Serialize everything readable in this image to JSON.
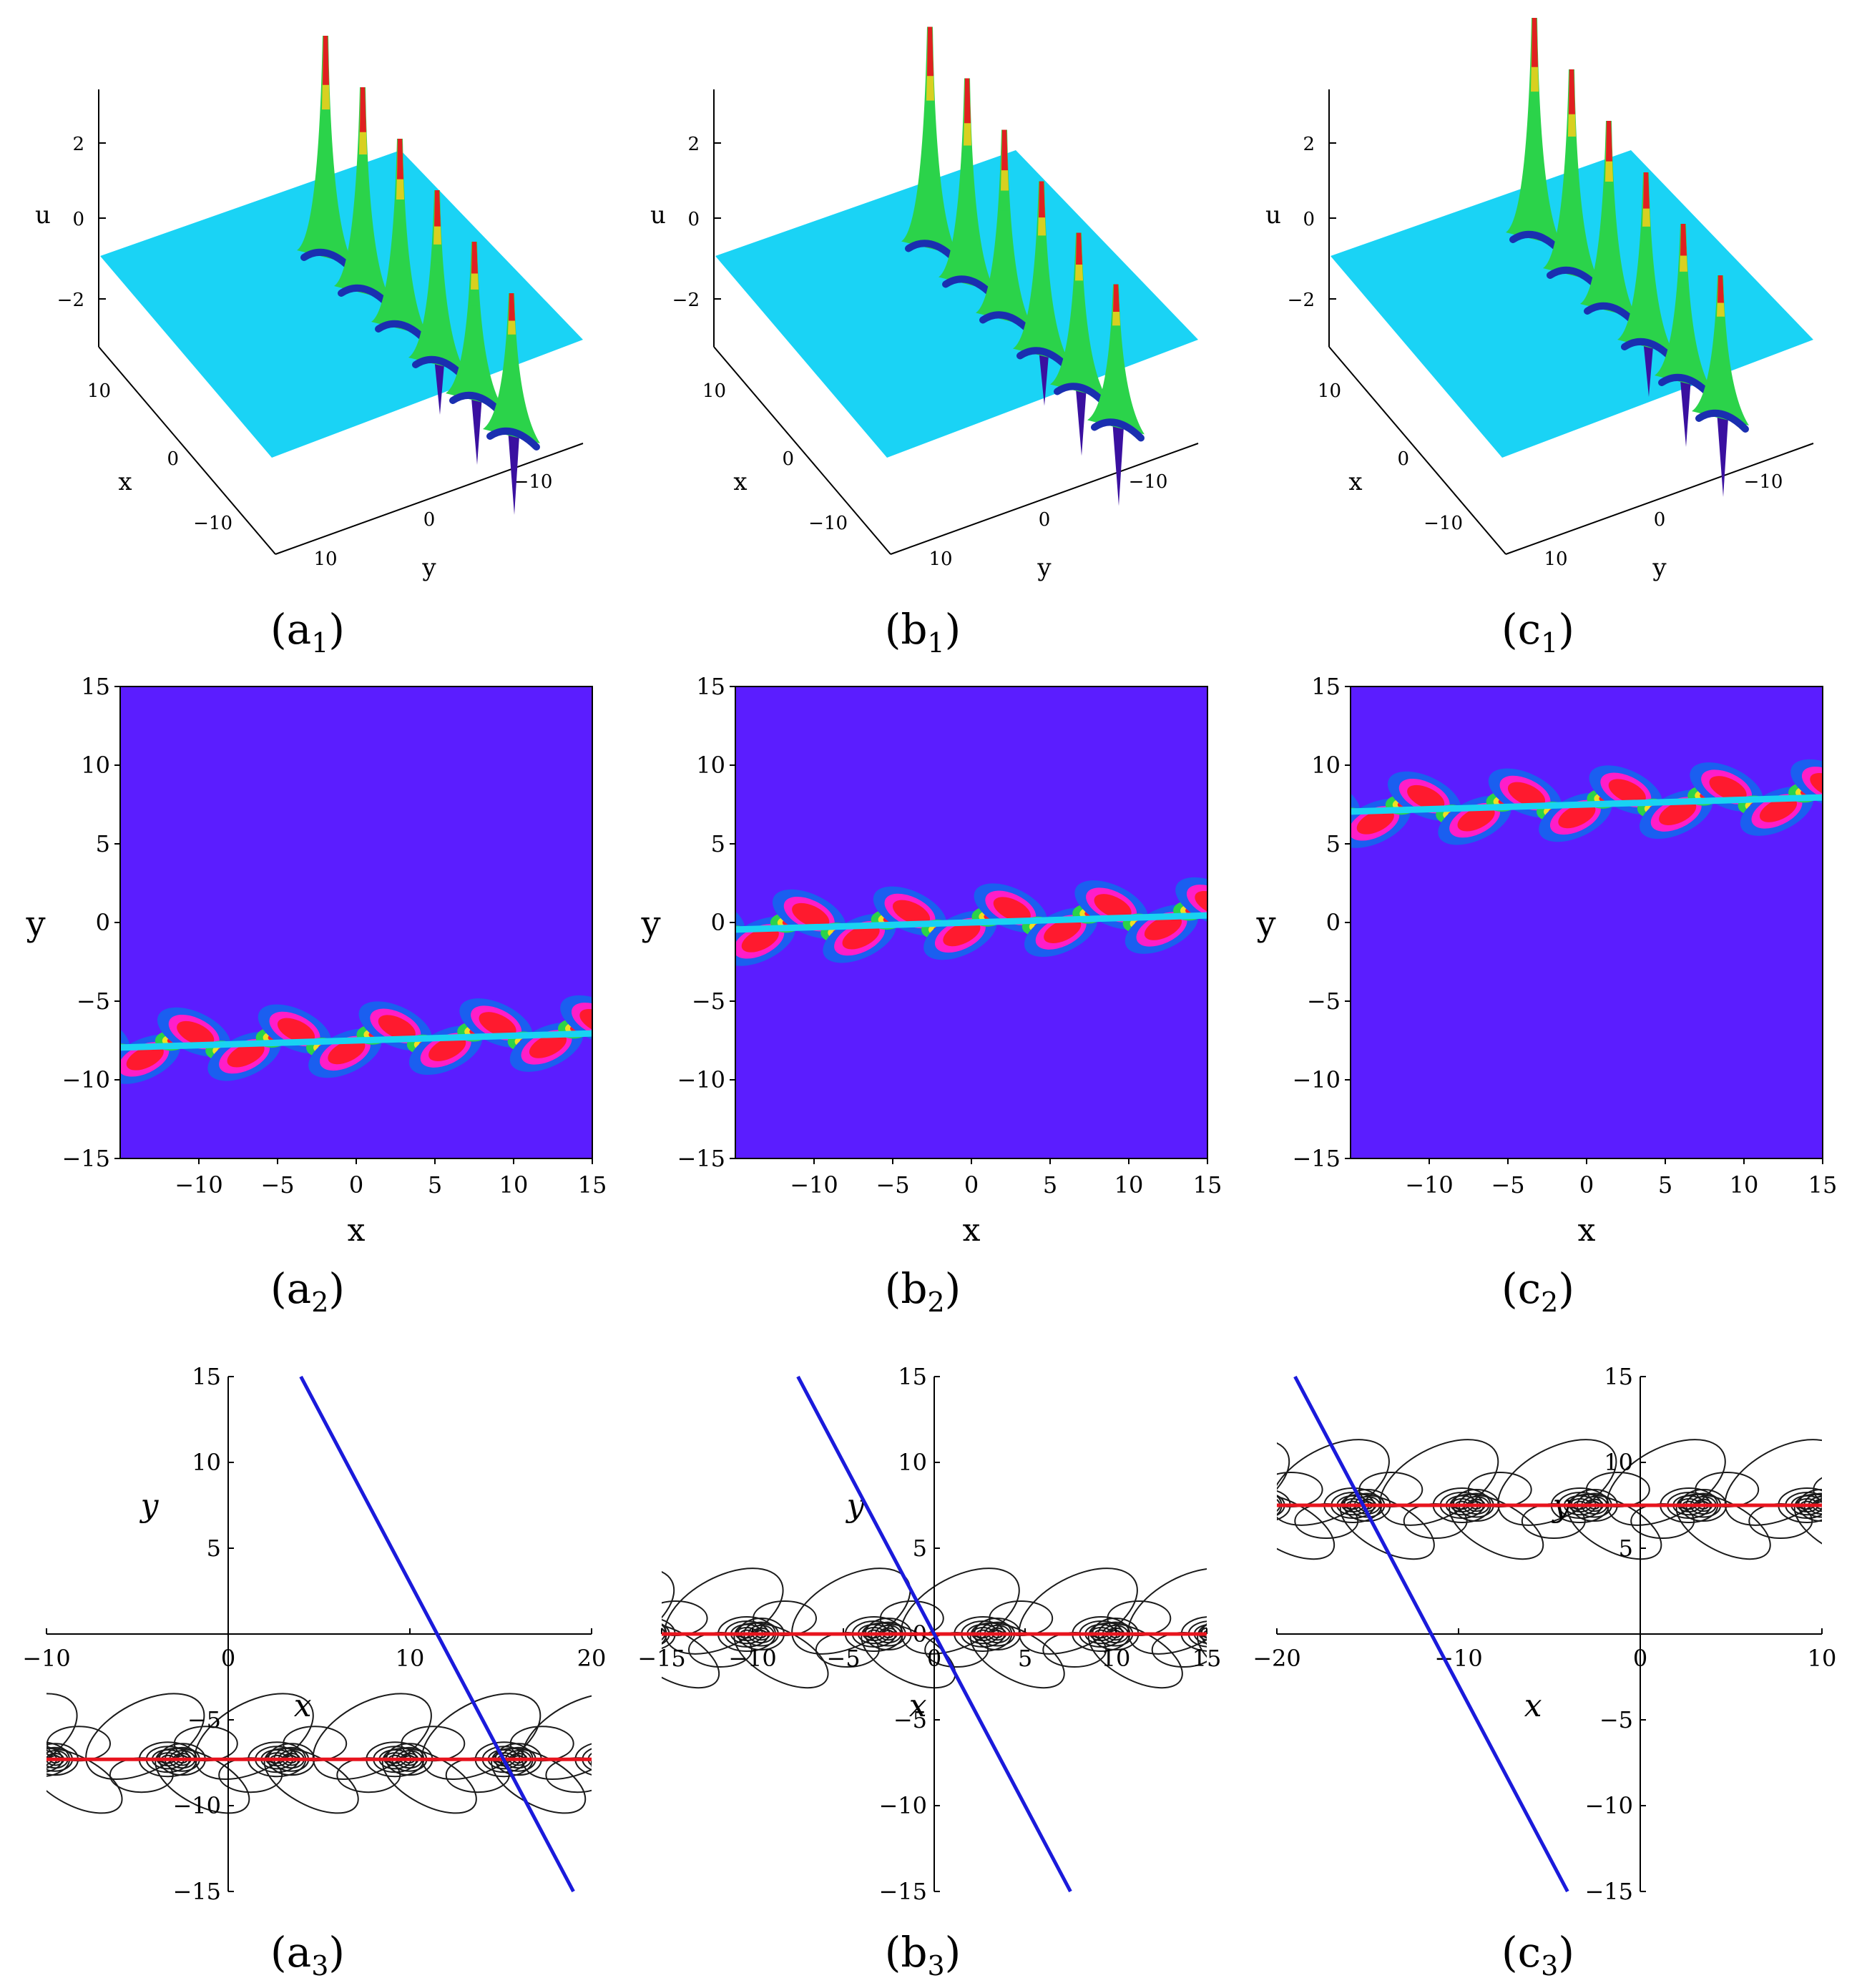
{
  "colors": {
    "surface": "#1ad3f5",
    "density_bg": "#5b1dff",
    "red_line": "#e8141e",
    "blue_line": "#1a1adb",
    "contour": "#1a1a1a"
  },
  "chart_data": [
    {
      "id": "a1",
      "type": "surface3d",
      "caption": "a",
      "sub": "1",
      "zlabel": "u",
      "xlabel": "x",
      "ylabel": "y",
      "zticks": [
        "2",
        "0",
        "−2"
      ],
      "xticks": [
        "10",
        "0",
        "−10"
      ],
      "yticks": [
        "10",
        "0",
        "−10"
      ],
      "zrange": [
        -3.5,
        3.5
      ],
      "domain": [
        -15,
        15
      ],
      "soliton_y": -7.5,
      "peaks": 6
    },
    {
      "id": "b1",
      "type": "surface3d",
      "caption": "b",
      "sub": "1",
      "zlabel": "u",
      "xlabel": "x",
      "ylabel": "y",
      "zticks": [
        "2",
        "0",
        "−2"
      ],
      "xticks": [
        "10",
        "0",
        "−10"
      ],
      "yticks": [
        "10",
        "0",
        "−10"
      ],
      "zrange": [
        -3.5,
        3.5
      ],
      "domain": [
        -15,
        15
      ],
      "soliton_y": 0,
      "peaks": 6
    },
    {
      "id": "c1",
      "type": "surface3d",
      "caption": "c",
      "sub": "1",
      "zlabel": "u",
      "xlabel": "x",
      "ylabel": "y",
      "zticks": [
        "2",
        "0",
        "−2"
      ],
      "xticks": [
        "10",
        "0",
        "−10"
      ],
      "yticks": [
        "10",
        "0",
        "−10"
      ],
      "zrange": [
        -3.5,
        3.5
      ],
      "domain": [
        -15,
        15
      ],
      "soliton_y": 7.5,
      "peaks": 6
    },
    {
      "id": "a2",
      "type": "heatmap",
      "caption": "a",
      "sub": "2",
      "xlabel": "x",
      "ylabel": "y",
      "xlim": [
        -15,
        15
      ],
      "ylim": [
        -15,
        15
      ],
      "xticks": [
        "−10",
        "−5",
        "0",
        "5",
        "10",
        "15"
      ],
      "yticks": [
        "15",
        "10",
        "5",
        "0",
        "−5",
        "−10",
        "−15"
      ],
      "soliton_y": -7.5,
      "slope": 0.03,
      "period": 6.4
    },
    {
      "id": "b2",
      "type": "heatmap",
      "caption": "b",
      "sub": "2",
      "xlabel": "x",
      "ylabel": "y",
      "xlim": [
        -15,
        15
      ],
      "ylim": [
        -15,
        15
      ],
      "xticks": [
        "−10",
        "−5",
        "0",
        "5",
        "10",
        "15"
      ],
      "yticks": [
        "15",
        "10",
        "5",
        "0",
        "−5",
        "−10",
        "−15"
      ],
      "soliton_y": 0,
      "slope": 0.03,
      "period": 6.4
    },
    {
      "id": "c2",
      "type": "heatmap",
      "caption": "c",
      "sub": "2",
      "xlabel": "x",
      "ylabel": "y",
      "xlim": [
        -15,
        15
      ],
      "ylim": [
        -15,
        15
      ],
      "xticks": [
        "−10",
        "−5",
        "0",
        "5",
        "10",
        "15"
      ],
      "yticks": [
        "15",
        "10",
        "5",
        "0",
        "−5",
        "−10",
        "−15"
      ],
      "soliton_y": 7.5,
      "slope": 0.03,
      "period": 6.4
    },
    {
      "id": "a3",
      "type": "contour",
      "caption": "a",
      "sub": "3",
      "xlabel": "x",
      "ylabel": "y",
      "xlim": [
        -10,
        20
      ],
      "ylim": [
        -15,
        15
      ],
      "xticks": [
        "−10",
        "0",
        "10",
        "20"
      ],
      "yticks": [
        "15",
        "10",
        "5",
        "−5",
        "−10",
        "−15"
      ],
      "red_line_y": -7.3,
      "blue_line": [
        [
          4,
          15
        ],
        [
          19,
          -15
        ]
      ],
      "centers": [
        -10,
        -3,
        3,
        9.5,
        15.5,
        21
      ]
    },
    {
      "id": "b3",
      "type": "contour",
      "caption": "b",
      "sub": "3",
      "xlabel": "x",
      "ylabel": "y",
      "xlim": [
        -15,
        15
      ],
      "ylim": [
        -15,
        15
      ],
      "xticks": [
        "−15",
        "−10",
        "−5",
        "0",
        "5",
        "10",
        "15"
      ],
      "yticks": [
        "15",
        "10",
        "5",
        "0",
        "−5",
        "−10",
        "−15"
      ],
      "red_line_y": 0,
      "blue_line": [
        [
          -7.5,
          15
        ],
        [
          7.5,
          -15
        ]
      ],
      "centers": [
        -16,
        -10,
        -3,
        3,
        9.5,
        15.5
      ]
    },
    {
      "id": "c3",
      "type": "contour",
      "caption": "c",
      "sub": "3",
      "xlabel": "x",
      "ylabel": "y",
      "xlim": [
        -20,
        10
      ],
      "ylim": [
        -15,
        15
      ],
      "xticks": [
        "−20",
        "−10",
        "0",
        "10"
      ],
      "yticks": [
        "15",
        "10",
        "5",
        "−5",
        "−10",
        "−15"
      ],
      "red_line_y": 7.5,
      "blue_line": [
        [
          -19,
          15
        ],
        [
          -4,
          -15
        ]
      ],
      "centers": [
        -21,
        -15.5,
        -9.5,
        -3,
        3,
        9.5
      ]
    }
  ]
}
